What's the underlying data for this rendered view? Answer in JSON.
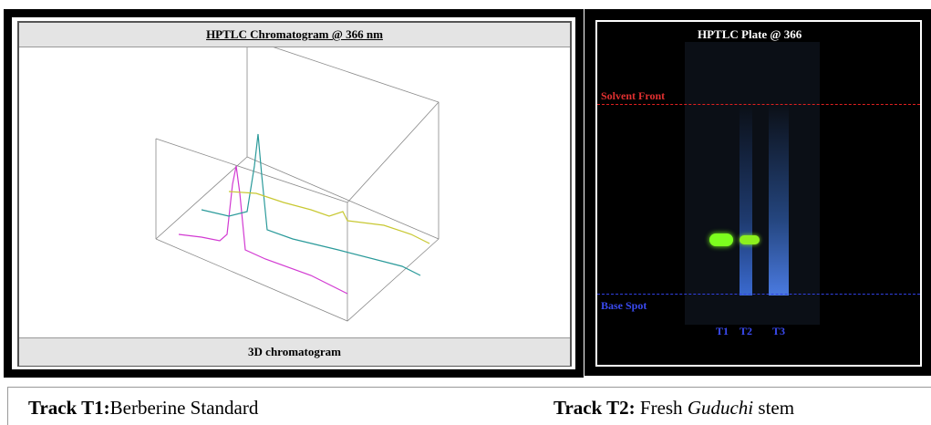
{
  "left_panel": {
    "title": "HPTLC Chromatogram @ 366 nm",
    "footer": "3D chromatogram"
  },
  "right_panel": {
    "title": "HPTLC Plate @ 366",
    "solvent_front": "Solvent Front",
    "base_spot": "Base Spot",
    "tracks": [
      "T1",
      "T2",
      "T3"
    ]
  },
  "caption": {
    "t1_label": "Track T1:",
    "t1_text": "Berberine Standard",
    "t2_label": "Track T2:",
    "t2_text": "Fresh",
    "t2_italic": "Guduchi",
    "t2_tail": "stem"
  }
}
